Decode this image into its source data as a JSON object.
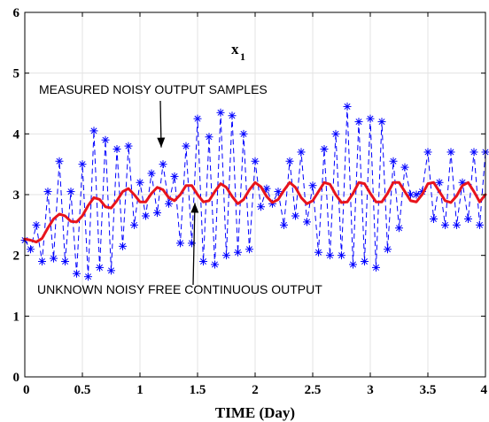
{
  "chart_data": {
    "type": "line",
    "title": "x",
    "title_subscript": "1",
    "xlabel": "TIME (Day)",
    "ylabel": "",
    "xlim": [
      0,
      4
    ],
    "ylim": [
      0,
      6
    ],
    "xticks": [
      0,
      0.5,
      1,
      1.5,
      2,
      2.5,
      3,
      3.5,
      4
    ],
    "xtick_labels": [
      "0",
      "0.5",
      "1",
      "1.5",
      "2",
      "2.5",
      "3",
      "3.5",
      "4"
    ],
    "yticks": [
      0,
      1,
      2,
      3,
      4,
      5,
      6
    ],
    "ytick_labels": [
      "0",
      "1",
      "2",
      "3",
      "4",
      "5",
      "6"
    ],
    "grid": true,
    "legend": "none",
    "series": [
      {
        "style": "dashed-with-asterisk-markers",
        "color": "#0000ff",
        "x": [
          0,
          0.05,
          0.1,
          0.15,
          0.2,
          0.25,
          0.3,
          0.35,
          0.4,
          0.45,
          0.5,
          0.55,
          0.6,
          0.65,
          0.7,
          0.75,
          0.8,
          0.85,
          0.9,
          0.95,
          1.0,
          1.05,
          1.1,
          1.15,
          1.2,
          1.25,
          1.3,
          1.35,
          1.4,
          1.45,
          1.5,
          1.55,
          1.6,
          1.65,
          1.7,
          1.75,
          1.8,
          1.85,
          1.9,
          1.95,
          2.0,
          2.05,
          2.1,
          2.15,
          2.2,
          2.25,
          2.3,
          2.35,
          2.4,
          2.45,
          2.5,
          2.55,
          2.6,
          2.65,
          2.7,
          2.75,
          2.8,
          2.85,
          2.9,
          2.95,
          3.0,
          3.05,
          3.1,
          3.15,
          3.2,
          3.25,
          3.3,
          3.35,
          3.4,
          3.45,
          3.5,
          3.55,
          3.6,
          3.65,
          3.7,
          3.75,
          3.8,
          3.85,
          3.9,
          3.95,
          4.0
        ],
        "y": [
          2.25,
          2.1,
          2.5,
          1.9,
          3.05,
          1.95,
          3.55,
          1.9,
          3.05,
          1.7,
          3.5,
          1.65,
          4.05,
          1.8,
          3.9,
          1.75,
          3.75,
          2.15,
          3.8,
          2.5,
          3.2,
          2.65,
          3.35,
          2.7,
          3.5,
          2.85,
          3.3,
          2.2,
          3.8,
          2.2,
          4.25,
          1.9,
          3.95,
          1.85,
          4.35,
          2.0,
          4.3,
          2.05,
          4.0,
          2.1,
          3.55,
          2.8,
          3.1,
          2.85,
          3.05,
          2.5,
          3.55,
          2.65,
          3.7,
          2.55,
          3.15,
          2.05,
          3.75,
          2.0,
          4.0,
          2.0,
          4.45,
          1.85,
          4.2,
          1.9,
          4.25,
          1.8,
          4.2,
          2.1,
          3.55,
          2.45,
          3.45,
          3.0,
          3.0,
          3.05,
          3.7,
          2.6,
          3.2,
          2.5,
          3.7,
          2.5,
          3.2,
          2.6,
          3.7,
          2.5,
          3.7
        ]
      },
      {
        "style": "solid",
        "color": "#e8141c",
        "note_curve": "smooth continuous output",
        "x": [
          0,
          0.05,
          0.1,
          0.15,
          0.2,
          0.25,
          0.3,
          0.35,
          0.4,
          0.45,
          0.5,
          0.55,
          0.6,
          0.65,
          0.7,
          0.75,
          0.8,
          0.85,
          0.9,
          0.95,
          1.0,
          1.05,
          1.1,
          1.15,
          1.2,
          1.25,
          1.3,
          1.35,
          1.4,
          1.45,
          1.5,
          1.55,
          1.6,
          1.65,
          1.7,
          1.75,
          1.8,
          1.85,
          1.9,
          1.95,
          2.0,
          2.05,
          2.1,
          2.15,
          2.2,
          2.25,
          2.3,
          2.35,
          2.4,
          2.45,
          2.5,
          2.55,
          2.6,
          2.65,
          2.7,
          2.75,
          2.8,
          2.85,
          2.9,
          2.95,
          3.0,
          3.05,
          3.1,
          3.15,
          3.2,
          3.25,
          3.3,
          3.35,
          3.4,
          3.45,
          3.5,
          3.55,
          3.6,
          3.65,
          3.7,
          3.75,
          3.8,
          3.85,
          3.9,
          3.95,
          4.0
        ],
        "y": [
          2.27,
          2.25,
          2.22,
          2.28,
          2.45,
          2.6,
          2.68,
          2.65,
          2.56,
          2.55,
          2.65,
          2.82,
          2.95,
          2.92,
          2.8,
          2.78,
          2.9,
          3.05,
          3.1,
          3.0,
          2.88,
          2.88,
          3.02,
          3.12,
          3.08,
          2.95,
          2.9,
          3.0,
          3.15,
          3.15,
          3.0,
          2.88,
          2.9,
          3.05,
          3.18,
          3.12,
          2.97,
          2.85,
          2.92,
          3.08,
          3.2,
          3.13,
          2.97,
          2.87,
          2.92,
          3.07,
          3.2,
          3.12,
          2.95,
          2.85,
          2.9,
          3.05,
          3.2,
          3.17,
          3.0,
          2.87,
          2.88,
          3.02,
          3.2,
          3.18,
          3.02,
          2.88,
          2.88,
          3.02,
          3.2,
          3.2,
          3.05,
          2.9,
          2.88,
          3.0,
          3.18,
          3.2,
          3.05,
          2.9,
          2.87,
          2.98,
          3.15,
          3.2,
          3.05,
          2.88,
          3.0
        ]
      }
    ],
    "annotations": [
      {
        "text": "MEASURED NOISY OUTPUT SAMPLES",
        "at_x": 1.1,
        "at_y": 3.85
      },
      {
        "text": "UNKNOWN NOISY FREE CONTINUOUS OUTPUT",
        "at_x": 1.5,
        "at_y": 2.95
      }
    ]
  }
}
